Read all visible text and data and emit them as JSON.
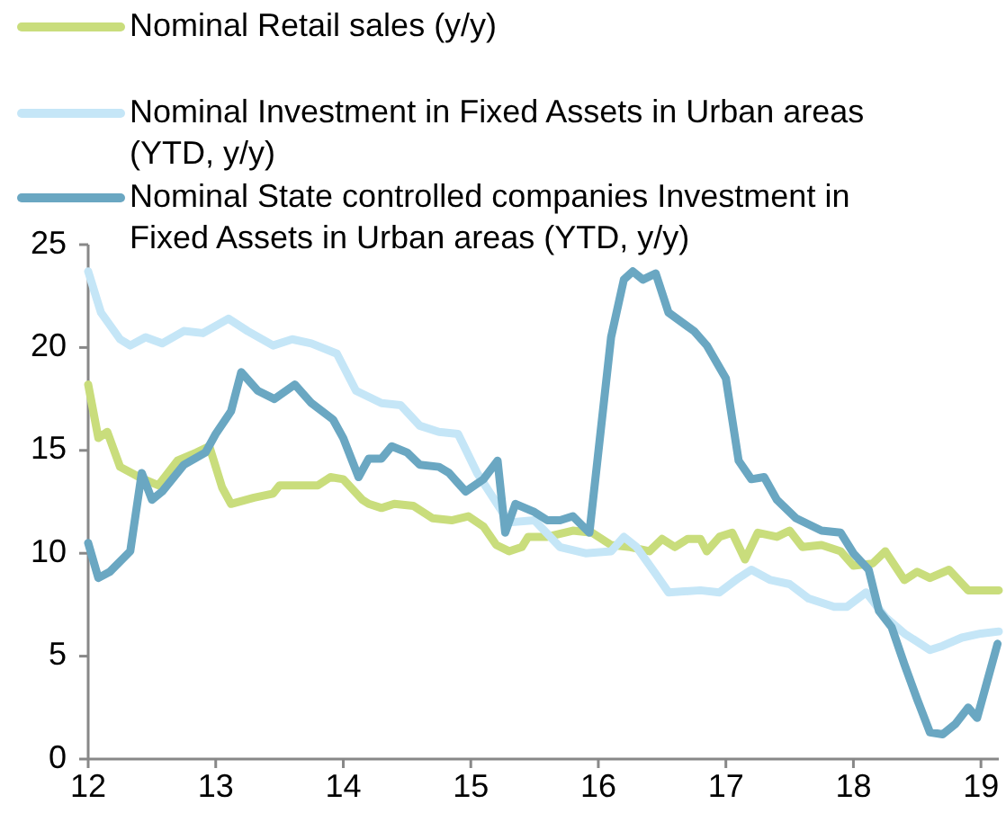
{
  "chart_data": {
    "type": "line",
    "xlim": [
      12,
      19.14
    ],
    "xticks": [
      12,
      13,
      14,
      15,
      16,
      17,
      18,
      19
    ],
    "ylim": [
      0,
      25
    ],
    "yticks": [
      0,
      5,
      10,
      15,
      20,
      25
    ],
    "grid": false,
    "legend": "top left",
    "line_style": "solid",
    "marker": "none",
    "series": [
      {
        "name": "Nominal Retail sales (y/y)",
        "color": "#c9dd7c",
        "x": [
          12,
          12.08,
          12.15,
          12.25,
          12.4,
          12.55,
          12.7,
          12.85,
          12.95,
          13.05,
          13.12,
          13.3,
          13.45,
          13.5,
          13.65,
          13.8,
          13.9,
          14,
          14.15,
          14.2,
          14.3,
          14.4,
          14.55,
          14.7,
          14.85,
          14.98,
          15.1,
          15.2,
          15.3,
          15.4,
          15.45,
          15.6,
          15.8,
          15.95,
          16.1,
          16.25,
          16.4,
          16.5,
          16.6,
          16.7,
          16.8,
          16.85,
          16.95,
          17.05,
          17.15,
          17.25,
          17.4,
          17.5,
          17.6,
          17.75,
          17.9,
          18,
          18.15,
          18.25,
          18.4,
          18.5,
          18.6,
          18.75,
          18.9,
          19.14
        ],
        "values": [
          18.2,
          15.6,
          15.9,
          14.2,
          13.7,
          13.3,
          14.5,
          14.9,
          15.2,
          13.2,
          12.4,
          12.7,
          12.9,
          13.3,
          13.3,
          13.3,
          13.7,
          13.6,
          12.6,
          12.4,
          12.2,
          12.4,
          12.3,
          11.7,
          11.6,
          11.8,
          11.3,
          10.4,
          10.1,
          10.3,
          10.8,
          10.8,
          11.1,
          11,
          10.4,
          10.3,
          10.1,
          10.7,
          10.3,
          10.7,
          10.7,
          10.1,
          10.8,
          11,
          9.7,
          11,
          10.8,
          11.1,
          10.3,
          10.4,
          10.1,
          9.4,
          9.5,
          10.1,
          8.7,
          9.1,
          8.8,
          9.2,
          8.2,
          8.2
        ]
      },
      {
        "name": "Nominal Investment in Fixed Assets in Urban areas (YTD, y/y)",
        "color": "#c5e6f7",
        "x": [
          12,
          12.1,
          12.25,
          12.33,
          12.45,
          12.58,
          12.75,
          12.9,
          13.1,
          13.25,
          13.45,
          13.6,
          13.75,
          13.95,
          14.1,
          14.3,
          14.45,
          14.6,
          14.75,
          14.9,
          15.05,
          15.3,
          15.5,
          15.7,
          15.9,
          16.1,
          16.2,
          16.3,
          16.45,
          16.55,
          16.8,
          16.95,
          17.1,
          17.2,
          17.35,
          17.5,
          17.65,
          17.85,
          17.95,
          18.1,
          18.25,
          18.4,
          18.6,
          18.7,
          18.85,
          19,
          19.14
        ],
        "values": [
          23.7,
          21.7,
          20.4,
          20.1,
          20.5,
          20.2,
          20.8,
          20.7,
          21.4,
          20.8,
          20.1,
          20.4,
          20.2,
          19.7,
          17.9,
          17.3,
          17.2,
          16.2,
          15.9,
          15.8,
          13.9,
          11.5,
          11.6,
          10.3,
          10,
          10.1,
          10.8,
          10.3,
          9,
          8.1,
          8.2,
          8.1,
          8.8,
          9.2,
          8.7,
          8.5,
          7.8,
          7.4,
          7.4,
          8.1,
          6.9,
          6.1,
          5.3,
          5.5,
          5.9,
          6.1,
          6.2
        ]
      },
      {
        "name": "Nominal State controlled companies  Investment in Fixed Assets in Urban areas (YTD, y/y)",
        "color": "#6aa7c2",
        "x": [
          12,
          12.08,
          12.17,
          12.33,
          12.42,
          12.5,
          12.58,
          12.75,
          12.92,
          13,
          13.12,
          13.2,
          13.33,
          13.46,
          13.62,
          13.75,
          13.92,
          14,
          14.12,
          14.2,
          14.3,
          14.38,
          14.5,
          14.6,
          14.75,
          14.83,
          14.96,
          15.1,
          15.21,
          15.27,
          15.35,
          15.5,
          15.6,
          15.7,
          15.8,
          15.93,
          16.1,
          16.2,
          16.27,
          16.35,
          16.45,
          16.55,
          16.75,
          16.85,
          17,
          17.1,
          17.2,
          17.3,
          17.4,
          17.55,
          17.75,
          17.9,
          18,
          18.12,
          18.2,
          18.3,
          18.4,
          18.5,
          18.6,
          18.7,
          18.8,
          18.9,
          18.97,
          19.13
        ],
        "values": [
          10.5,
          8.8,
          9.1,
          10.1,
          13.9,
          12.6,
          13,
          14.3,
          14.9,
          15.8,
          16.9,
          18.8,
          17.9,
          17.5,
          18.2,
          17.3,
          16.5,
          15.6,
          13.7,
          14.6,
          14.6,
          15.2,
          14.9,
          14.3,
          14.2,
          13.9,
          13,
          13.6,
          14.5,
          11,
          12.4,
          12,
          11.6,
          11.6,
          11.8,
          11,
          20.5,
          23.3,
          23.7,
          23.3,
          23.6,
          21.7,
          20.8,
          20.1,
          18.5,
          14.5,
          13.6,
          13.7,
          12.6,
          11.7,
          11.1,
          11,
          10,
          9.2,
          7.2,
          6.4,
          4.6,
          2.9,
          1.3,
          1.2,
          1.7,
          2.5,
          2,
          5.6
        ]
      }
    ]
  }
}
